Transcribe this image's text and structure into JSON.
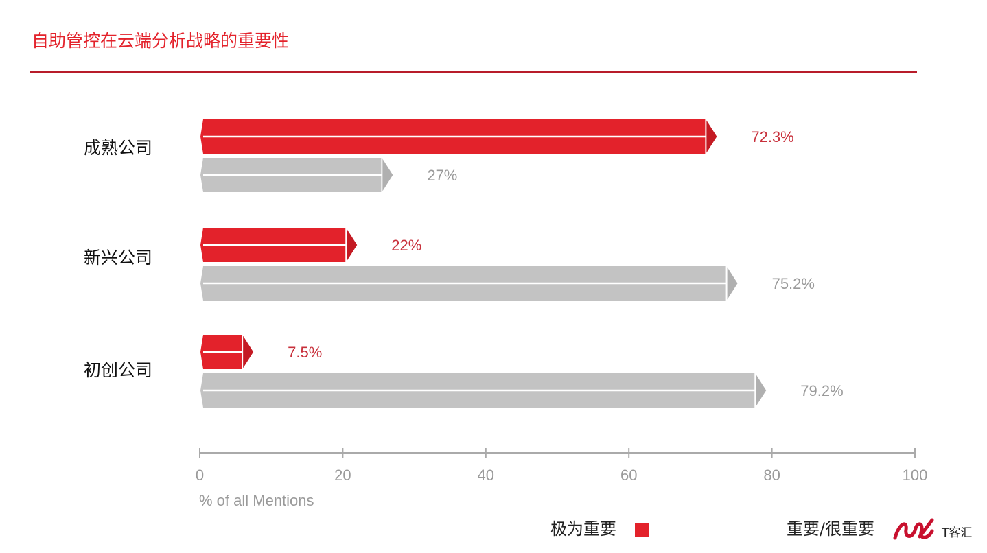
{
  "title": "自助管控在云端分析战略的重要性",
  "legend": {
    "critical_label": "极为重要",
    "important_label": "重要/很重要"
  },
  "watermark": "T客汇",
  "colors": {
    "critical": "#e3222b",
    "important": "#c3c3c3",
    "critical_text": "#c8313c",
    "important_text": "#9a9a9a",
    "axis": "#aaaaaa"
  },
  "chart_data": {
    "type": "bar",
    "orientation": "horizontal",
    "categories": [
      "成熟公司",
      "新兴公司",
      "初创公司"
    ],
    "series": [
      {
        "name": "极为重要",
        "values": [
          72.3,
          22,
          7.5
        ],
        "labels": [
          "72.3%",
          "22%",
          "7.5%"
        ]
      },
      {
        "name": "重要/很重要",
        "values": [
          27,
          75.2,
          79.2
        ],
        "labels": [
          "27%",
          "75.2%",
          "79.2%"
        ]
      }
    ],
    "xlim": [
      0,
      100
    ],
    "xticks": [
      0,
      20,
      40,
      60,
      80,
      100
    ],
    "xlabel": "% of all Mentions",
    "ylabel": "",
    "grid": false,
    "legend_position": "bottom-right"
  }
}
